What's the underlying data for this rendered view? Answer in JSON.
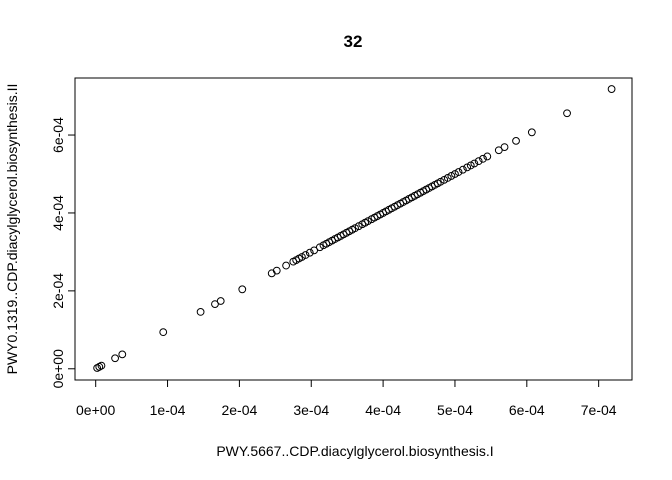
{
  "chart_data": {
    "type": "scatter",
    "title": "32",
    "xlabel": "PWY.5667..CDP.diacylglycerol.biosynthesis.I",
    "ylabel": "PWY0.1319..CDP.diacylglycerol.biosynthesis.II",
    "xlim": [
      -2.88e-05,
      0.0007464
    ],
    "ylim": [
      -2.88e-05,
      0.0007464
    ],
    "x_ticks": [
      0,
      0.0001,
      0.0002,
      0.0003,
      0.0004,
      0.0005,
      0.0006,
      0.0007
    ],
    "x_tick_labels": [
      "0e+00",
      "1e-04",
      "2e-04",
      "3e-04",
      "4e-04",
      "5e-04",
      "6e-04",
      "7e-04"
    ],
    "y_ticks": [
      0,
      0.0002,
      0.0004,
      0.0006
    ],
    "y_tick_labels": [
      "0e+00",
      "2e-04",
      "4e-04",
      "6e-04"
    ],
    "grid": false,
    "points": [
      [
        2e-06,
        2e-06
      ],
      [
        5e-06,
        5e-06
      ],
      [
        8e-06,
        8e-06
      ],
      [
        2.7e-05,
        2.7e-05
      ],
      [
        3.7e-05,
        3.7e-05
      ],
      [
        9.4e-05,
        9.4e-05
      ],
      [
        0.000146,
        0.000146
      ],
      [
        0.000166,
        0.000166
      ],
      [
        0.000174,
        0.000174
      ],
      [
        0.000204,
        0.000204
      ],
      [
        0.000245,
        0.000245
      ],
      [
        0.000252,
        0.000252
      ],
      [
        0.000265,
        0.000265
      ],
      [
        0.000275,
        0.000275
      ],
      [
        0.000279,
        0.000279
      ],
      [
        0.000283,
        0.000283
      ],
      [
        0.000287,
        0.000287
      ],
      [
        0.000292,
        0.000292
      ],
      [
        0.000298,
        0.000298
      ],
      [
        0.000304,
        0.000304
      ],
      [
        0.000312,
        0.000312
      ],
      [
        0.000317,
        0.000317
      ],
      [
        0.000321,
        0.000321
      ],
      [
        0.000325,
        0.000325
      ],
      [
        0.000329,
        0.000329
      ],
      [
        0.000333,
        0.000333
      ],
      [
        0.000337,
        0.000337
      ],
      [
        0.000341,
        0.000341
      ],
      [
        0.000345,
        0.000345
      ],
      [
        0.000349,
        0.000349
      ],
      [
        0.000353,
        0.000353
      ],
      [
        0.000357,
        0.000357
      ],
      [
        0.000361,
        0.000361
      ],
      [
        0.000366,
        0.000366
      ],
      [
        0.000371,
        0.000371
      ],
      [
        0.000375,
        0.000375
      ],
      [
        0.000379,
        0.000379
      ],
      [
        0.000384,
        0.000384
      ],
      [
        0.000388,
        0.000388
      ],
      [
        0.000392,
        0.000392
      ],
      [
        0.000396,
        0.000396
      ],
      [
        0.0004,
        0.0004
      ],
      [
        0.000404,
        0.000404
      ],
      [
        0.000408,
        0.000408
      ],
      [
        0.000412,
        0.000412
      ],
      [
        0.000416,
        0.000416
      ],
      [
        0.00042,
        0.00042
      ],
      [
        0.000424,
        0.000424
      ],
      [
        0.000428,
        0.000428
      ],
      [
        0.000432,
        0.000432
      ],
      [
        0.000436,
        0.000436
      ],
      [
        0.00044,
        0.00044
      ],
      [
        0.000444,
        0.000444
      ],
      [
        0.000448,
        0.000448
      ],
      [
        0.000452,
        0.000452
      ],
      [
        0.000456,
        0.000456
      ],
      [
        0.00046,
        0.00046
      ],
      [
        0.000464,
        0.000464
      ],
      [
        0.000468,
        0.000468
      ],
      [
        0.000472,
        0.000472
      ],
      [
        0.000476,
        0.000476
      ],
      [
        0.00048,
        0.00048
      ],
      [
        0.000485,
        0.000485
      ],
      [
        0.00049,
        0.00049
      ],
      [
        0.000495,
        0.000495
      ],
      [
        0.0005,
        0.0005
      ],
      [
        0.000505,
        0.000505
      ],
      [
        0.000511,
        0.000511
      ],
      [
        0.000517,
        0.000517
      ],
      [
        0.000522,
        0.000522
      ],
      [
        0.000527,
        0.000527
      ],
      [
        0.000533,
        0.000533
      ],
      [
        0.000539,
        0.000539
      ],
      [
        0.000545,
        0.000545
      ],
      [
        0.000561,
        0.000561
      ],
      [
        0.000569,
        0.000569
      ],
      [
        0.000585,
        0.000585
      ],
      [
        0.000607,
        0.000607
      ],
      [
        0.000656,
        0.000656
      ],
      [
        0.000718,
        0.000718
      ]
    ]
  }
}
